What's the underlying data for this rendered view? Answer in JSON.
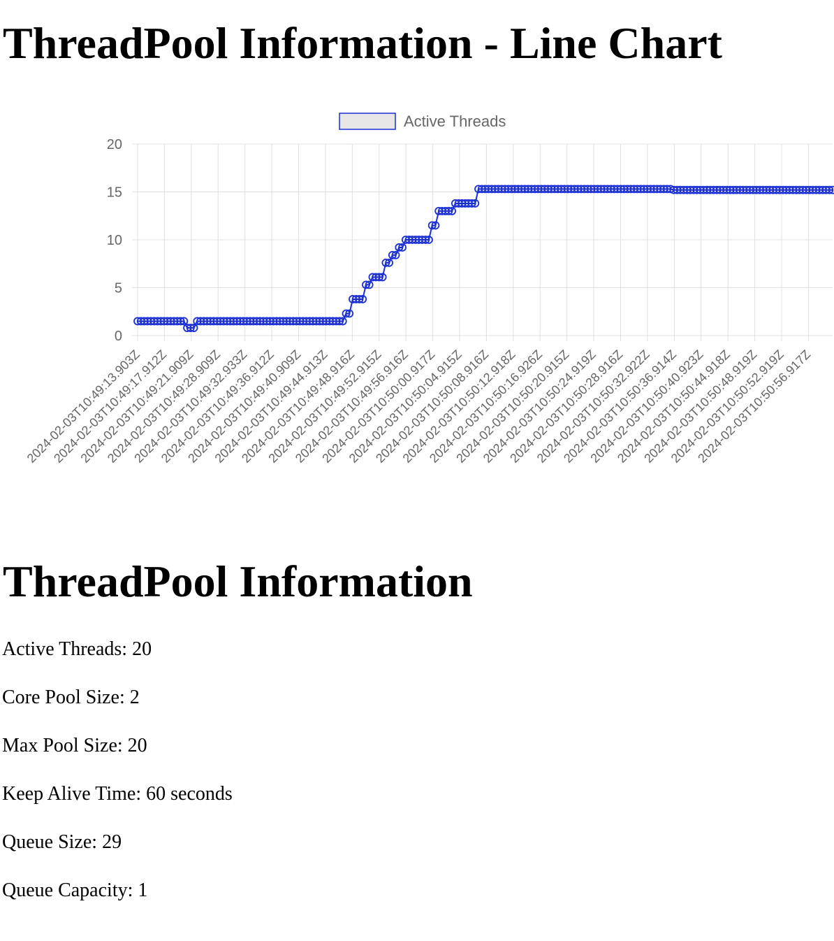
{
  "page": {
    "chart_title": "ThreadPool Information - Line Chart",
    "info_title": "ThreadPool Information"
  },
  "info": {
    "active_threads": "Active Threads: 20",
    "core_pool_size": "Core Pool Size: 2",
    "max_pool_size": "Max Pool Size: 20",
    "keep_alive_time": "Keep Alive Time: 60 seconds",
    "queue_size": "Queue Size: 29",
    "queue_capacity": "Queue Capacity: 1"
  },
  "colors": {
    "line": "#1a2fd6",
    "legend_fill": "#e6e6e6",
    "grid": "#e0e0e0",
    "tick_text": "#666666"
  },
  "chart_data": {
    "type": "line",
    "title": "",
    "xlabel": "",
    "ylabel": "",
    "ylim": [
      0,
      20
    ],
    "y_ticks": [
      0,
      5,
      10,
      15,
      20
    ],
    "grid": true,
    "legend_position": "top",
    "x_tick_labels": [
      "2024-02-03T10:49:13.903Z",
      "2024-02-03T10:49:17.912Z",
      "2024-02-03T10:49:21.909Z",
      "2024-02-03T10:49:28.909Z",
      "2024-02-03T10:49:32.933Z",
      "2024-02-03T10:49:36.912Z",
      "2024-02-03T10:49:40.909Z",
      "2024-02-03T10:49:44.913Z",
      "2024-02-03T10:49:48.916Z",
      "2024-02-03T10:49:52.915Z",
      "2024-02-03T10:49:56.916Z",
      "2024-02-03T10:50:00.917Z",
      "2024-02-03T10:50:04.915Z",
      "2024-02-03T10:50:08.916Z",
      "2024-02-03T10:50:12.918Z",
      "2024-02-03T10:50:16.926Z",
      "2024-02-03T10:50:20.915Z",
      "2024-02-03T10:50:24.919Z",
      "2024-02-03T10:50:28.916Z",
      "2024-02-03T10:50:32.922Z",
      "2024-02-03T10:50:36.914Z",
      "2024-02-03T10:50:40.923Z",
      "2024-02-03T10:50:44.918Z",
      "2024-02-03T10:50:48.919Z",
      "2024-02-03T10:50:52.919Z",
      "2024-02-03T10:50:56.917Z"
    ],
    "series": [
      {
        "name": "Active Threads",
        "values": [
          1.5,
          1.5,
          1.5,
          1.5,
          1.5,
          1.5,
          1.5,
          1.5,
          1.5,
          1.5,
          1.5,
          1.5,
          1.5,
          1.5,
          1.5,
          0.8,
          0.8,
          0.8,
          1.5,
          1.5,
          1.5,
          1.5,
          1.5,
          1.5,
          1.5,
          1.5,
          1.5,
          1.5,
          1.5,
          1.5,
          1.5,
          1.5,
          1.5,
          1.5,
          1.5,
          1.5,
          1.5,
          1.5,
          1.5,
          1.5,
          1.5,
          1.5,
          1.5,
          1.5,
          1.5,
          1.5,
          1.5,
          1.5,
          1.5,
          1.5,
          1.5,
          1.5,
          1.5,
          1.5,
          1.5,
          1.5,
          1.5,
          1.5,
          1.5,
          1.5,
          1.5,
          1.5,
          1.5,
          2.3,
          2.3,
          3.8,
          3.8,
          3.8,
          3.8,
          5.3,
          5.3,
          6.1,
          6.1,
          6.1,
          6.1,
          7.6,
          7.6,
          8.4,
          8.4,
          9.2,
          9.2,
          10,
          10,
          10,
          10,
          10,
          10,
          10,
          10,
          11.5,
          11.5,
          13,
          13,
          13,
          13,
          13,
          13.8,
          13.8,
          13.8,
          13.8,
          13.8,
          13.8,
          13.8,
          15.3,
          15.3,
          15.3,
          15.3,
          15.3,
          15.3,
          15.3,
          15.3,
          15.3,
          15.3,
          15.3,
          15.3,
          15.3,
          15.3,
          15.3,
          15.3,
          15.3,
          15.3,
          15.3,
          15.3,
          15.3,
          15.3,
          15.3,
          15.3,
          15.3,
          15.3,
          15.3,
          15.3,
          15.3,
          15.3,
          15.3,
          15.3,
          15.3,
          15.3,
          15.3,
          15.3,
          15.3,
          15.3,
          15.3,
          15.3,
          15.3,
          15.3,
          15.3,
          15.3,
          15.3,
          15.3,
          15.3,
          15.3,
          15.3,
          15.3,
          15.3,
          15.3,
          15.3,
          15.3,
          15.3,
          15.3,
          15.3,
          15.3,
          15.3,
          15.2,
          15.2,
          15.2,
          15.2,
          15.2,
          15.2,
          15.2,
          15.2,
          15.2,
          15.2,
          15.2,
          15.2,
          15.2,
          15.2,
          15.2,
          15.2,
          15.2,
          15.2,
          15.2,
          15.2,
          15.2,
          15.2,
          15.2,
          15.2,
          15.2,
          15.2,
          15.2,
          15.2,
          15.2,
          15.2,
          15.2,
          15.2,
          15.2,
          15.2,
          15.2,
          15.2,
          15.2,
          15.2,
          15.2,
          15.2,
          15.2,
          15.2,
          15.2,
          15.2,
          15.2,
          15.2,
          15.2,
          15.2,
          15.2
        ]
      }
    ]
  }
}
